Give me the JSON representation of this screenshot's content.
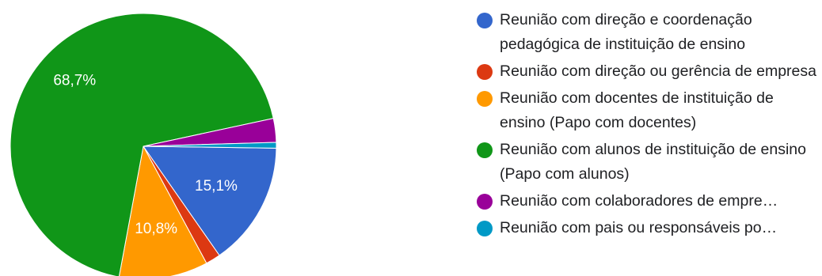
{
  "chart_data": {
    "type": "pie",
    "title": "",
    "slices": [
      {
        "label": "Reunião com direção e coordenação pedagógica de instituição de ensino",
        "value": 15.1,
        "value_label": "15,1%",
        "color": "#3366cc",
        "wrap": true
      },
      {
        "label": "Reunião com direção ou gerência de empresa",
        "value": 1.8,
        "value_label": "",
        "color": "#dc3912",
        "wrap": true
      },
      {
        "label": "Reunião com docentes de instituição de ensino (Papo com docentes)",
        "value": 10.8,
        "value_label": "10,8%",
        "color": "#ff9900",
        "wrap": true
      },
      {
        "label": "Reunião com alunos de instituição de ensino (Papo com alunos)",
        "value": 68.7,
        "value_label": "68,7%",
        "color": "#109618",
        "wrap": true
      },
      {
        "label": "Reunião com colaboradores de empre…",
        "value": 2.9,
        "value_label": "",
        "color": "#990099",
        "wrap": false
      },
      {
        "label": "Reunião com pais ou responsáveis po…",
        "value": 0.7,
        "value_label": "",
        "color": "#0099c6",
        "wrap": false
      }
    ],
    "legend_position": "right"
  }
}
